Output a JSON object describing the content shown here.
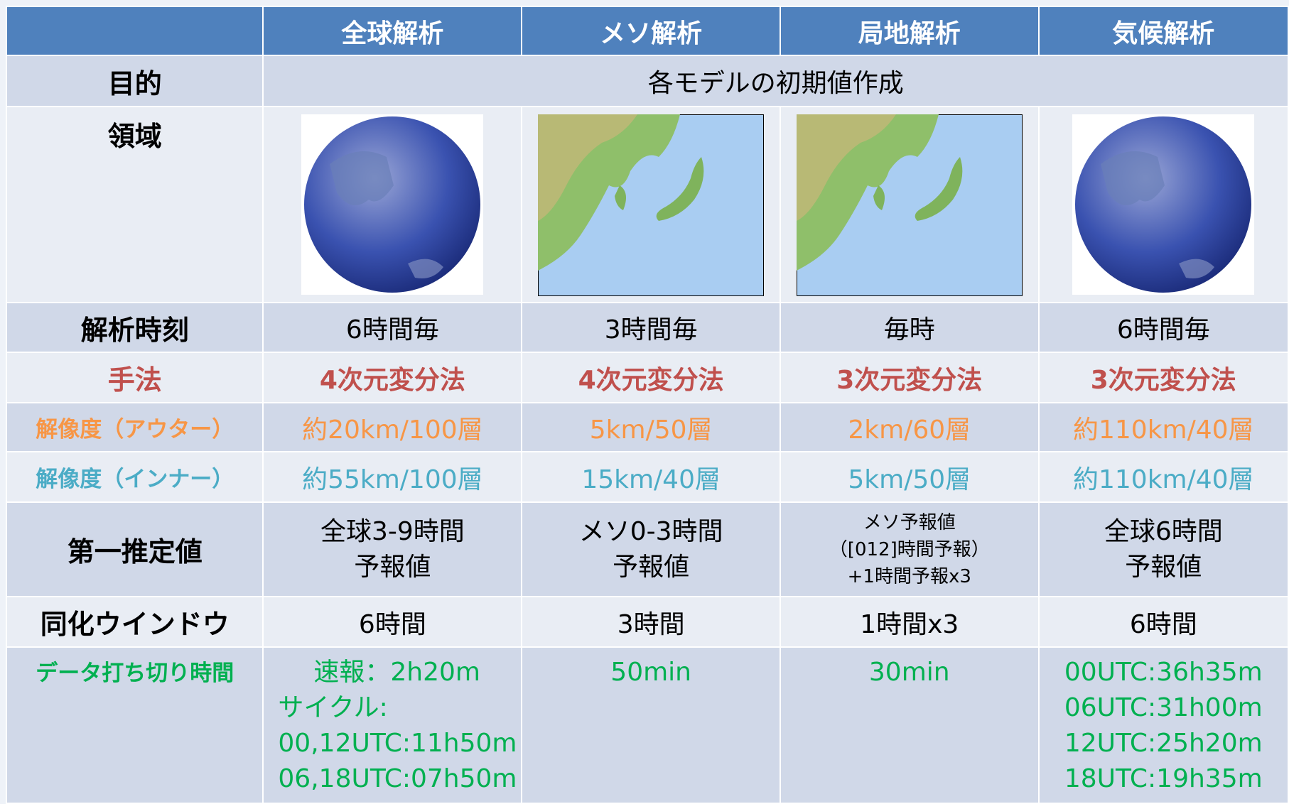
{
  "table": {
    "columns": [
      "全球解析",
      "メソ解析",
      "局地解析",
      "気候解析"
    ],
    "rows": [
      {
        "label": "目的",
        "cells": [
          "各モデルの初期値作成"
        ]
      },
      {
        "label": "領域"
      },
      {
        "label": "解析時刻",
        "cells": [
          "6時間毎",
          "3時間毎",
          "毎時",
          "6時間毎"
        ]
      },
      {
        "label": "手法",
        "cells": [
          "4次元変分法",
          "4次元変分法",
          "3次元変分法",
          "3次元変分法"
        ]
      },
      {
        "label": "解像度（アウター）",
        "cells": [
          "約20km/100層",
          "5km/50層",
          "2km/60層",
          "約110km/40層"
        ]
      },
      {
        "label": "解像度（インナー）",
        "cells": [
          "約55km/100層",
          "15km/40層",
          "5km/50層",
          "約110km/40層"
        ]
      },
      {
        "label": "第一推定値",
        "cells": [
          [
            "全球3-9時間",
            "予報値"
          ],
          [
            "メソ0-3時間",
            "予報値"
          ],
          [
            "メソ予報値",
            "（[012]時間予報）",
            "+1時間予報x3"
          ],
          [
            "全球6時間",
            "予報値"
          ]
        ]
      },
      {
        "label": "同化ウインドウ",
        "cells": [
          "6時間",
          "3時間",
          "1時間x3",
          "6時間"
        ]
      },
      {
        "label": "データ打ち切り時間",
        "cells": [
          [
            "速報：2h20m",
            "サイクル:",
            "00,12UTC:11h50m",
            "06,18UTC:07h50m"
          ],
          [
            "50min"
          ],
          [
            "30min"
          ],
          [
            "00UTC:36h35m",
            "06UTC:31h00m",
            "12UTC:25h20m",
            "18UTC:19h35m"
          ]
        ]
      }
    ]
  }
}
